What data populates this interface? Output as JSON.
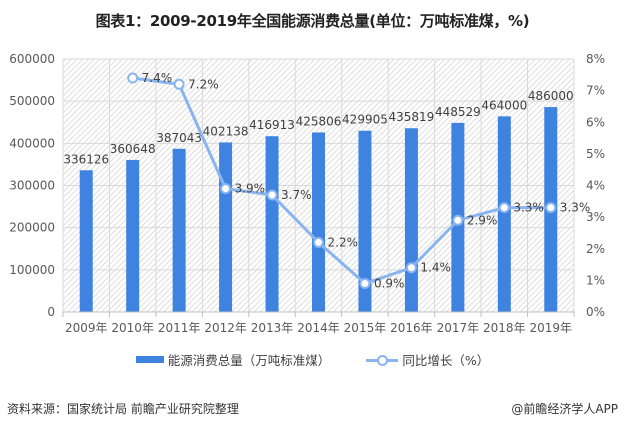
{
  "chart_data": {
    "type": "bar+line",
    "title": "图表1：2009-2019年全国能源消费总量(单位：万吨标准煤，%)",
    "categories": [
      "2009年",
      "2010年",
      "2011年",
      "2012年",
      "2013年",
      "2014年",
      "2015年",
      "2016年",
      "2017年",
      "2018年",
      "2019年"
    ],
    "series": [
      {
        "name": "能源消费总量（万吨标准煤）",
        "type": "bar",
        "axis": "left",
        "color": "#3f83e0",
        "values": [
          336126,
          360648,
          387043,
          402138,
          416913,
          425806,
          429905,
          435819,
          448529,
          464000,
          486000
        ],
        "labels": [
          "336126",
          "360648",
          "387043",
          "402138",
          "416913",
          "425806",
          "429905",
          "435819",
          "448529",
          "464000",
          "486000"
        ]
      },
      {
        "name": "同比增长（%）",
        "type": "line",
        "axis": "right",
        "color": "#8ab4f0",
        "values": [
          null,
          7.4,
          7.2,
          3.9,
          3.7,
          2.2,
          0.9,
          1.4,
          2.9,
          3.3,
          3.3
        ],
        "labels": [
          "",
          "7.4%",
          "7.2%",
          "3.9%",
          "3.7%",
          "2.2%",
          "0.9%",
          "1.4%",
          "2.9%",
          "3.3%",
          "3.3%"
        ]
      }
    ],
    "y_left": {
      "min": 0,
      "max": 600000,
      "ticks": [
        "0",
        "100000",
        "200000",
        "300000",
        "400000",
        "500000",
        "600000"
      ]
    },
    "y_right": {
      "min": 0,
      "max": 8,
      "ticks": [
        "0%",
        "1%",
        "2%",
        "3%",
        "4%",
        "5%",
        "6%",
        "7%",
        "8%"
      ]
    },
    "grid": true,
    "legend_position": "bottom"
  },
  "legend": {
    "bar_label": "能源消费总量（万吨标准煤）",
    "line_label": "同比增长（%）"
  },
  "footer": {
    "source": "资料来源：国家统计局 前瞻产业研究院整理",
    "credit": "@前瞻经济学人APP"
  }
}
